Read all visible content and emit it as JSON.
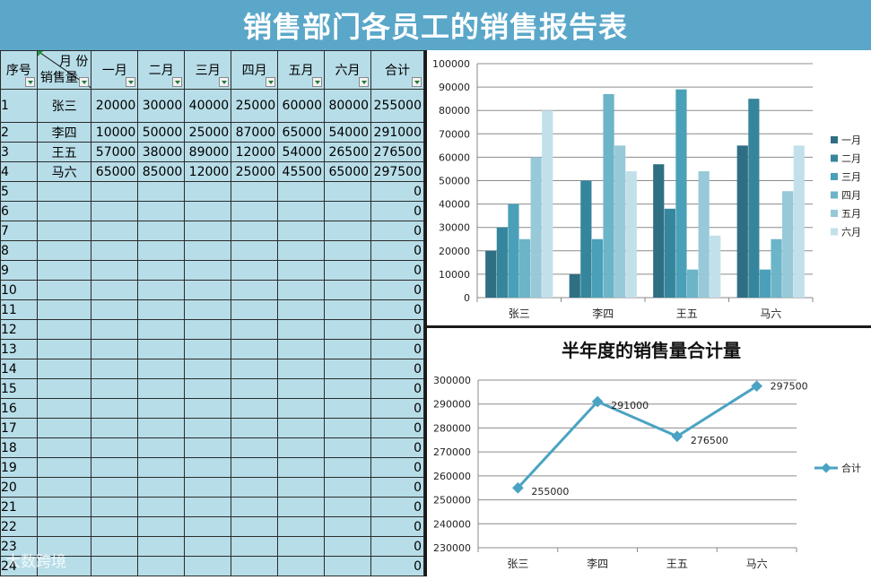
{
  "header": {
    "title": "销售部门各员工的销售报告表"
  },
  "table": {
    "col_seq": "序号",
    "diag_top": "月 份",
    "diag_bottom": "销售量",
    "months": [
      "一月",
      "二月",
      "三月",
      "四月",
      "五月",
      "六月"
    ],
    "total_label": "合计",
    "rows": [
      {
        "seq": "1",
        "name": "张三",
        "values": [
          "20000",
          "30000",
          "40000",
          "25000",
          "60000",
          "80000"
        ],
        "total": "255000"
      },
      {
        "seq": "2",
        "name": "李四",
        "values": [
          "10000",
          "50000",
          "25000",
          "87000",
          "65000",
          "54000"
        ],
        "total": "291000"
      },
      {
        "seq": "3",
        "name": "王五",
        "values": [
          "57000",
          "38000",
          "89000",
          "12000",
          "54000",
          "26500"
        ],
        "total": "276500"
      },
      {
        "seq": "4",
        "name": "马六",
        "values": [
          "65000",
          "85000",
          "12000",
          "25000",
          "45500",
          "65000"
        ],
        "total": "297500"
      },
      {
        "seq": "5",
        "name": "",
        "values": [
          "",
          "",
          "",
          "",
          "",
          ""
        ],
        "total": "0"
      },
      {
        "seq": "6",
        "name": "",
        "values": [
          "",
          "",
          "",
          "",
          "",
          ""
        ],
        "total": "0"
      },
      {
        "seq": "7",
        "name": "",
        "values": [
          "",
          "",
          "",
          "",
          "",
          ""
        ],
        "total": "0"
      },
      {
        "seq": "8",
        "name": "",
        "values": [
          "",
          "",
          "",
          "",
          "",
          ""
        ],
        "total": "0"
      },
      {
        "seq": "9",
        "name": "",
        "values": [
          "",
          "",
          "",
          "",
          "",
          ""
        ],
        "total": "0"
      },
      {
        "seq": "10",
        "name": "",
        "values": [
          "",
          "",
          "",
          "",
          "",
          ""
        ],
        "total": "0"
      },
      {
        "seq": "11",
        "name": "",
        "values": [
          "",
          "",
          "",
          "",
          "",
          ""
        ],
        "total": "0"
      },
      {
        "seq": "12",
        "name": "",
        "values": [
          "",
          "",
          "",
          "",
          "",
          ""
        ],
        "total": "0"
      },
      {
        "seq": "13",
        "name": "",
        "values": [
          "",
          "",
          "",
          "",
          "",
          ""
        ],
        "total": "0"
      },
      {
        "seq": "14",
        "name": "",
        "values": [
          "",
          "",
          "",
          "",
          "",
          ""
        ],
        "total": "0"
      },
      {
        "seq": "15",
        "name": "",
        "values": [
          "",
          "",
          "",
          "",
          "",
          ""
        ],
        "total": "0"
      },
      {
        "seq": "16",
        "name": "",
        "values": [
          "",
          "",
          "",
          "",
          "",
          ""
        ],
        "total": "0"
      },
      {
        "seq": "17",
        "name": "",
        "values": [
          "",
          "",
          "",
          "",
          "",
          ""
        ],
        "total": "0"
      },
      {
        "seq": "18",
        "name": "",
        "values": [
          "",
          "",
          "",
          "",
          "",
          ""
        ],
        "total": "0"
      },
      {
        "seq": "19",
        "name": "",
        "values": [
          "",
          "",
          "",
          "",
          "",
          ""
        ],
        "total": "0"
      },
      {
        "seq": "20",
        "name": "",
        "values": [
          "",
          "",
          "",
          "",
          "",
          ""
        ],
        "total": "0"
      },
      {
        "seq": "21",
        "name": "",
        "values": [
          "",
          "",
          "",
          "",
          "",
          ""
        ],
        "total": "0"
      },
      {
        "seq": "22",
        "name": "",
        "values": [
          "",
          "",
          "",
          "",
          "",
          ""
        ],
        "total": "0"
      },
      {
        "seq": "23",
        "name": "",
        "values": [
          "",
          "",
          "",
          "",
          "",
          ""
        ],
        "total": "0"
      },
      {
        "seq": "24",
        "name": "",
        "values": [
          "",
          "",
          "",
          "",
          "",
          ""
        ],
        "total": "0"
      }
    ]
  },
  "watermark": {
    "text": "大数跨境"
  },
  "colors": {
    "title_bg": "#5aa7c9",
    "cell_bg": "#b7dde8",
    "series": [
      "#2e6f84",
      "#35869c",
      "#4aa0b8",
      "#6cb4c8",
      "#97c9d8",
      "#c2e0ea"
    ],
    "line": "#4aa3c2"
  },
  "chart_data": [
    {
      "type": "bar",
      "categories": [
        "张三",
        "李四",
        "王五",
        "马六"
      ],
      "series": [
        {
          "name": "一月",
          "values": [
            20000,
            10000,
            57000,
            65000
          ]
        },
        {
          "name": "二月",
          "values": [
            30000,
            50000,
            38000,
            85000
          ]
        },
        {
          "name": "三月",
          "values": [
            40000,
            25000,
            89000,
            12000
          ]
        },
        {
          "name": "四月",
          "values": [
            25000,
            87000,
            12000,
            25000
          ]
        },
        {
          "name": "五月",
          "values": [
            60000,
            65000,
            54000,
            45500
          ]
        },
        {
          "name": "六月",
          "values": [
            80000,
            54000,
            26500,
            65000
          ]
        }
      ],
      "yticks": [
        "0",
        "10000",
        "20000",
        "30000",
        "40000",
        "50000",
        "60000",
        "70000",
        "80000",
        "90000",
        "100000"
      ],
      "ylim": [
        0,
        100000
      ],
      "grid": true,
      "legend": "right"
    },
    {
      "type": "line",
      "title": "半年度的销售量合计量",
      "categories": [
        "张三",
        "李四",
        "王五",
        "马六"
      ],
      "series": [
        {
          "name": "合计",
          "values": [
            255000,
            291000,
            276500,
            297500
          ]
        }
      ],
      "data_labels": [
        "255000",
        "291000",
        "276500",
        "297500"
      ],
      "yticks": [
        "230000",
        "240000",
        "250000",
        "260000",
        "270000",
        "280000",
        "290000",
        "300000"
      ],
      "ylim": [
        230000,
        300000
      ],
      "grid": true,
      "legend": "right"
    }
  ]
}
